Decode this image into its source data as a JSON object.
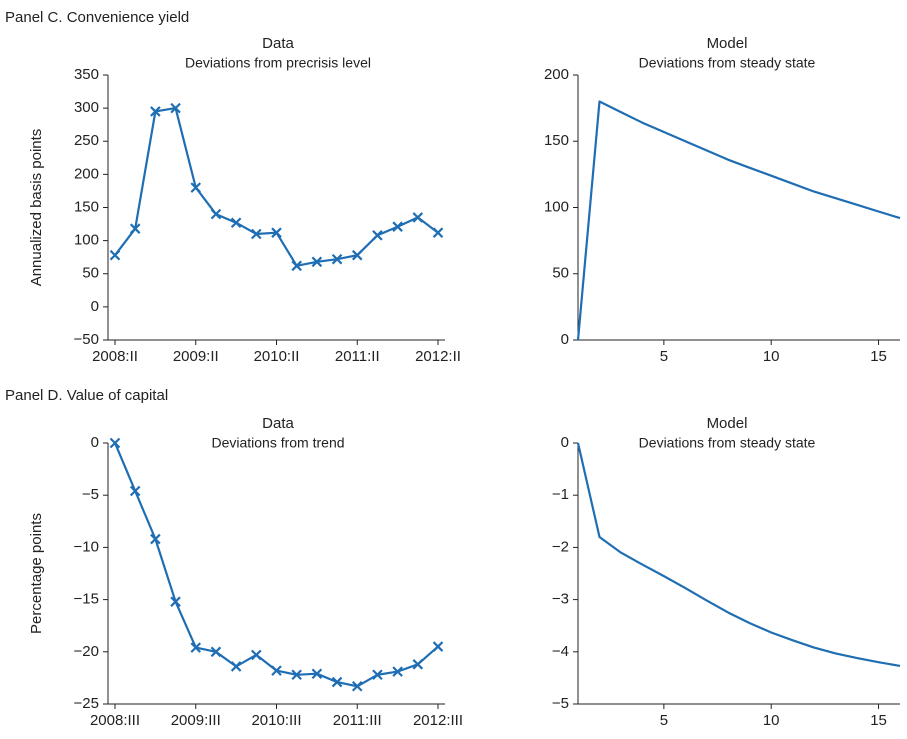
{
  "chart_data": [
    {
      "type": "line",
      "panel_title": "Panel C. Convenience yield",
      "title": "Data",
      "subtitle": "Deviations from precrisis level",
      "ylabel": "Annualized basis points",
      "categories": [
        "2008:II",
        null,
        null,
        null,
        "2009:II",
        null,
        null,
        null,
        "2010:II",
        null,
        null,
        null,
        "2011:II",
        null,
        null,
        null,
        "2012:II"
      ],
      "values": [
        78,
        118,
        295,
        300,
        180,
        140,
        127,
        110,
        112,
        62,
        68,
        72,
        78,
        108,
        121,
        135,
        112
      ],
      "color": "#1f6eb4",
      "marker": "x",
      "ylim": [
        -50,
        350
      ],
      "yticks": [
        {
          "value": -50,
          "label": "−50"
        },
        0,
        50,
        100,
        150,
        200,
        250,
        300,
        350
      ]
    },
    {
      "type": "line",
      "title": "Model",
      "subtitle": "Deviations from steady state",
      "x": [
        1,
        2,
        3,
        4,
        5,
        6,
        7,
        8,
        9,
        10,
        11,
        12,
        13,
        14,
        15,
        16
      ],
      "values": [
        0,
        180,
        172,
        164,
        157,
        150,
        143,
        136,
        130,
        124,
        118,
        112,
        107,
        102,
        97,
        92
      ],
      "color": "#1f6eb4",
      "xlim": [
        1,
        16
      ],
      "xticks": [
        5,
        10,
        15
      ],
      "ylim": [
        0,
        200
      ],
      "yticks": [
        0,
        50,
        100,
        150,
        200
      ]
    },
    {
      "type": "line",
      "panel_title": "Panel D. Value of capital",
      "title": "Data",
      "subtitle": "Deviations from trend",
      "ylabel": "Percentage points",
      "categories": [
        "2008:III",
        null,
        null,
        null,
        "2009:III",
        null,
        null,
        null,
        "2010:III",
        null,
        null,
        null,
        "2011:III",
        null,
        null,
        null,
        "2012:III"
      ],
      "values": [
        0,
        -4.6,
        -9.2,
        -15.2,
        -19.6,
        -20,
        -21.4,
        -20.3,
        -21.8,
        -22.2,
        -22.1,
        -22.9,
        -23.3,
        -22.2,
        -21.9,
        -21.2,
        -19.5
      ],
      "color": "#1f6eb4",
      "marker": "x",
      "ylim": [
        -25,
        0
      ],
      "yticks": [
        {
          "value": -25,
          "label": "−25"
        },
        {
          "value": -20,
          "label": "−20"
        },
        {
          "value": -15,
          "label": "−15"
        },
        {
          "value": -10,
          "label": "−10"
        },
        {
          "value": -5,
          "label": "−5"
        },
        0
      ]
    },
    {
      "type": "line",
      "title": "Model",
      "subtitle": "Deviations from steady state",
      "x": [
        1,
        2,
        3,
        4,
        5,
        6,
        7,
        8,
        9,
        10,
        11,
        12,
        13,
        14,
        15,
        16
      ],
      "values": [
        0,
        -1.8,
        -2.1,
        -2.33,
        -2.55,
        -2.78,
        -3.02,
        -3.25,
        -3.45,
        -3.63,
        -3.78,
        -3.92,
        -4.03,
        -4.12,
        -4.2,
        -4.27
      ],
      "color": "#1f6eb4",
      "xlim": [
        1,
        16
      ],
      "xticks": [
        5,
        10,
        15
      ],
      "ylim": [
        -5,
        0
      ],
      "yticks": [
        {
          "value": -5,
          "label": "−5"
        },
        {
          "value": -4,
          "label": "−4"
        },
        {
          "value": -3,
          "label": "−3"
        },
        {
          "value": -2,
          "label": "−2"
        },
        {
          "value": -1,
          "label": "−1"
        },
        0
      ]
    }
  ]
}
